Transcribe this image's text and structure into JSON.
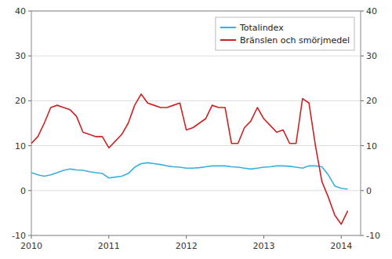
{
  "chart_data": {
    "type": "line",
    "x": [
      2010.0,
      2010.0833333333333,
      2010.1666666666667,
      2010.25,
      2010.3333333333333,
      2010.4166666666667,
      2010.5,
      2010.5833333333333,
      2010.6666666666667,
      2010.75,
      2010.8333333333333,
      2010.9166666666667,
      2011.0,
      2011.0833333333333,
      2011.1666666666667,
      2011.25,
      2011.3333333333333,
      2011.4166666666667,
      2011.5,
      2011.5833333333333,
      2011.6666666666667,
      2011.75,
      2011.8333333333333,
      2011.9166666666667,
      2012.0,
      2012.0833333333333,
      2012.1666666666667,
      2012.25,
      2012.3333333333333,
      2012.4166666666667,
      2012.5,
      2012.5833333333333,
      2012.6666666666667,
      2012.75,
      2012.8333333333333,
      2012.9166666666667,
      2013.0,
      2013.0833333333333,
      2013.1666666666667,
      2013.25,
      2013.3333333333333,
      2013.4166666666667,
      2013.5,
      2013.5833333333333,
      2013.6666666666667,
      2013.75,
      2013.8333333333333,
      2013.9166666666667,
      2014.0,
      2014.0833333333333
    ],
    "series": [
      {
        "name": "Totalindex",
        "color": "#3ab0e0",
        "values": [
          4.0,
          3.5,
          3.2,
          3.5,
          4.0,
          4.5,
          4.8,
          4.6,
          4.5,
          4.2,
          4.0,
          3.8,
          2.8,
          3.0,
          3.2,
          3.8,
          5.2,
          6.0,
          6.2,
          6.0,
          5.8,
          5.5,
          5.3,
          5.2,
          5.0,
          5.0,
          5.1,
          5.3,
          5.5,
          5.5,
          5.5,
          5.3,
          5.2,
          5.0,
          4.8,
          5.0,
          5.2,
          5.3,
          5.5,
          5.5,
          5.4,
          5.2,
          5.0,
          5.5,
          5.5,
          5.3,
          3.5,
          1.0,
          0.5,
          0.3
        ]
      },
      {
        "name": "Bränslen och smörjmedel",
        "color": "#cc2222",
        "values": [
          10.5,
          12.0,
          15.0,
          18.5,
          19.0,
          18.5,
          18.0,
          16.5,
          13.0,
          12.5,
          12.0,
          12.0,
          9.5,
          11.0,
          12.5,
          15.0,
          19.0,
          21.5,
          19.5,
          19.0,
          18.5,
          18.5,
          19.0,
          19.5,
          13.5,
          14.0,
          15.0,
          16.0,
          19.0,
          18.5,
          18.5,
          10.5,
          10.5,
          14.0,
          15.5,
          18.5,
          16.0,
          14.5,
          13.0,
          13.5,
          10.5,
          10.5,
          20.5,
          19.5,
          10.0,
          2.0,
          -1.5,
          -5.5,
          -7.5,
          -4.5
        ]
      }
    ],
    "xlim": [
      2010.0,
      2014.25
    ],
    "xticks": [
      2010,
      2011,
      2012,
      2013,
      2014
    ],
    "ylim": [
      -10,
      40
    ],
    "yticks": [
      -10,
      0,
      10,
      20,
      30,
      40
    ],
    "y2lim": [
      -10,
      40
    ],
    "y2ticks": [
      -10,
      0,
      10,
      20,
      30,
      40
    ],
    "grid": true,
    "legend": "upper right"
  }
}
